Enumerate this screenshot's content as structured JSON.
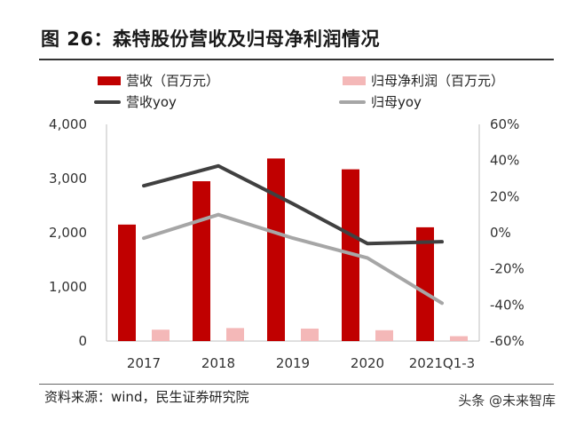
{
  "header": {
    "title": "图 26：森特股份营收及归母净利润情况"
  },
  "legend": {
    "revenue": "营收（百万元）",
    "net_profit": "归母净利润（百万元）",
    "revenue_yoy": "营收yoy",
    "net_profit_yoy": "归母yoy"
  },
  "colors": {
    "revenue": "#c00000",
    "net_profit": "#f4b8b8",
    "revenue_yoy": "#404040",
    "net_profit_yoy": "#a6a6a6"
  },
  "chart_data": {
    "type": "bar",
    "categories": [
      "2017",
      "2018",
      "2019",
      "2020",
      "2021Q1-3"
    ],
    "series": [
      {
        "name": "营收（百万元）",
        "type": "bar",
        "axis": "left",
        "values": [
          2150,
          2950,
          3370,
          3170,
          2100
        ]
      },
      {
        "name": "归母净利润（百万元）",
        "type": "bar",
        "axis": "left",
        "values": [
          210,
          240,
          230,
          200,
          90
        ]
      },
      {
        "name": "营收yoy",
        "type": "line",
        "axis": "right",
        "values": [
          0.26,
          0.37,
          0.16,
          -0.06,
          -0.05
        ]
      },
      {
        "name": "归母yoy",
        "type": "line",
        "axis": "right",
        "values": [
          -0.03,
          0.1,
          -0.03,
          -0.14,
          -0.39
        ]
      }
    ],
    "left_axis": {
      "min": 0,
      "max": 4000,
      "ticks": [
        "0",
        "1,000",
        "2,000",
        "3,000",
        "4,000"
      ]
    },
    "right_axis": {
      "min": -0.6,
      "max": 0.6,
      "ticks": [
        "-60%",
        "-40%",
        "-20%",
        "0%",
        "20%",
        "40%",
        "60%"
      ]
    },
    "title": "森特股份营收及归母净利润情况"
  },
  "footer": {
    "source": "资料来源：wind，民生证券研究院",
    "watermark": "头条 @未来智库"
  }
}
